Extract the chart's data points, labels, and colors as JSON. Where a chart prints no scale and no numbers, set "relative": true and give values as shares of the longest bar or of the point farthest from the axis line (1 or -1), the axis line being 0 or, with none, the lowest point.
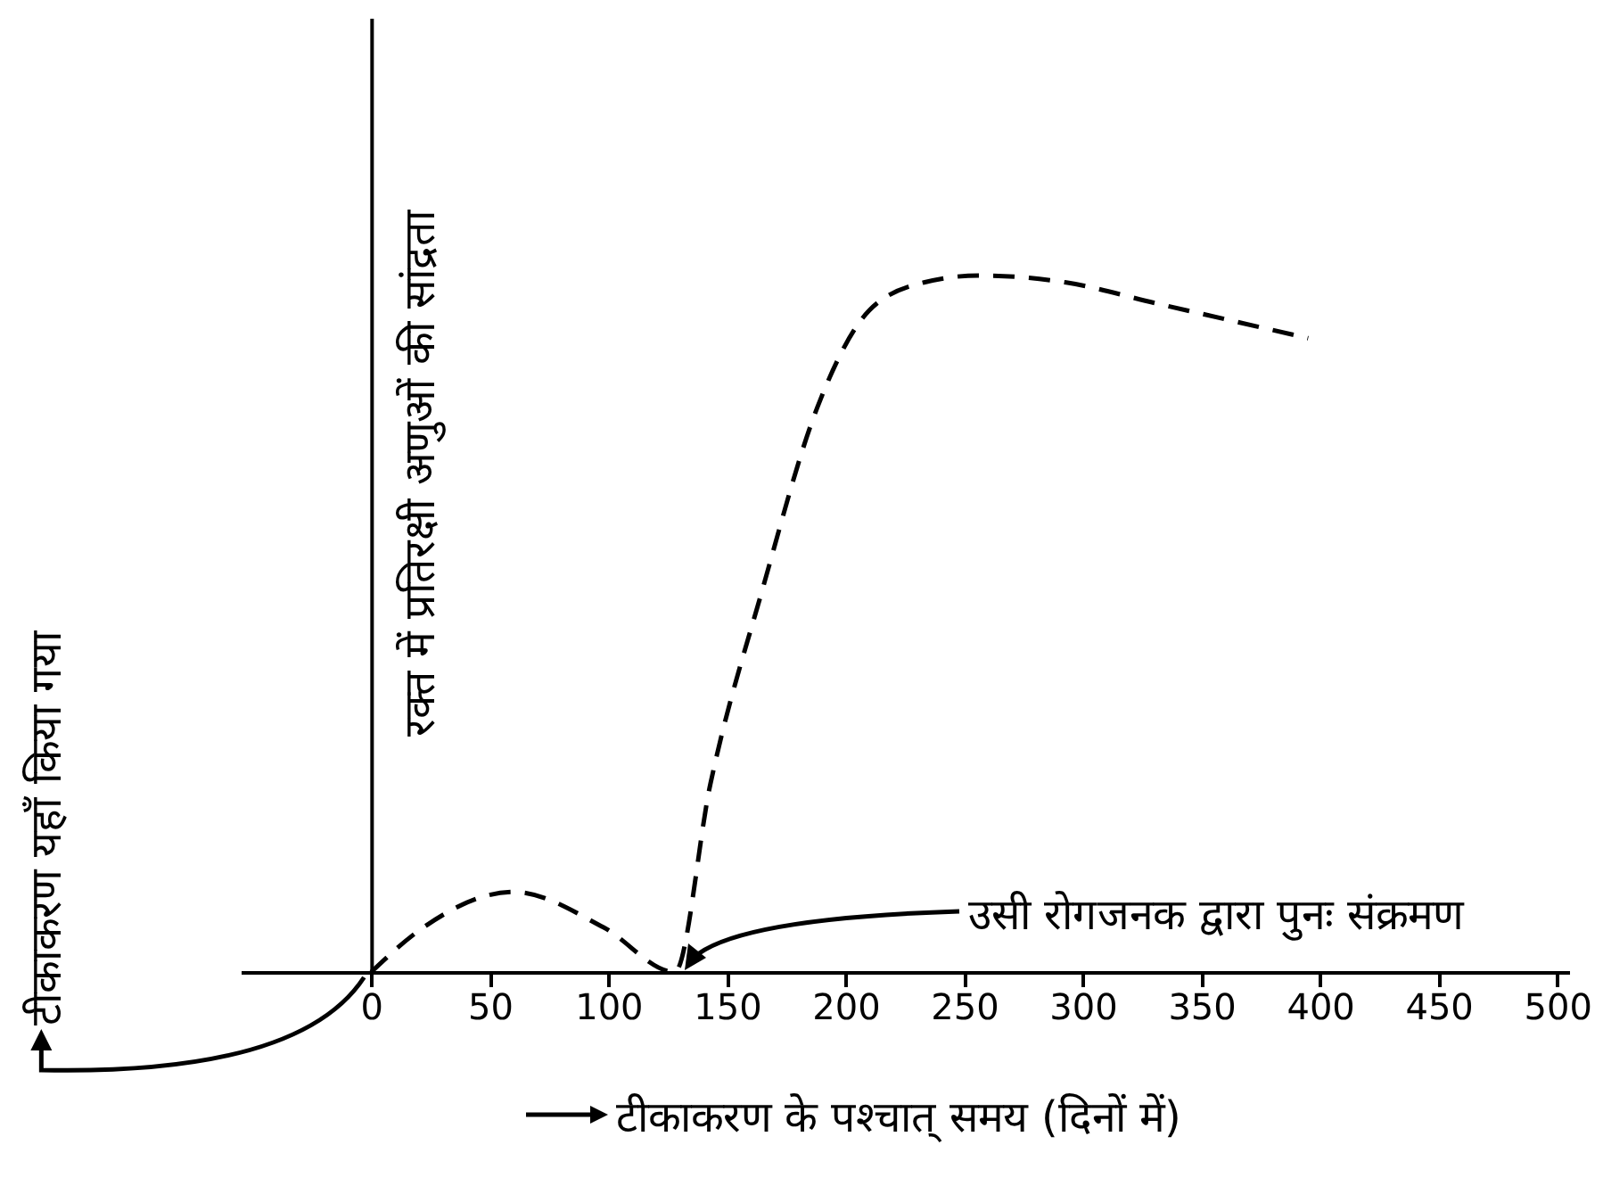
{
  "chart_data": {
    "type": "line",
    "xlabel": "टीकाकरण के पश्चात् समय (दिनों में)",
    "ylabel": "रक्त में प्रतिरक्षी अणुओं की सांद्रता",
    "relative": true,
    "x": [
      0,
      22,
      60,
      98,
      128,
      143,
      165,
      188,
      210,
      233,
      256,
      293,
      331,
      395
    ],
    "xlim": [
      -55,
      505
    ],
    "xticks": [
      0,
      50,
      100,
      150,
      200,
      250,
      300,
      350,
      400,
      450,
      500
    ],
    "series": [
      {
        "color": "#000000",
        "values": [
          0,
          0.064,
          0.115,
          0.064,
          0,
          0.27,
          0.55,
          0.81,
          0.95,
          0.99,
          1,
          0.99,
          0.96,
          0.91
        ]
      }
    ],
    "line_style": "dashed",
    "marker": "none",
    "annotations": [
      {
        "text": "टीकाकरण यहाँ किया गया",
        "x": 0,
        "y": 0
      },
      "उसी रोगजनक द्वारा पुनः संक्रमण"
    ]
  }
}
